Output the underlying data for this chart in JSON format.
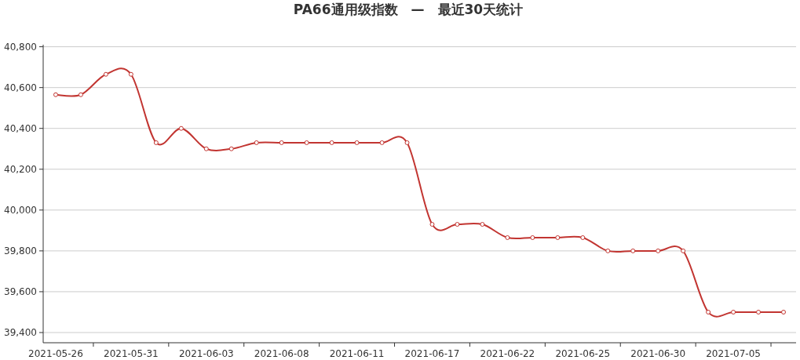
{
  "chart_data": {
    "type": "line",
    "title": "PA66通用级指数　—　最近30天统计",
    "categories": [
      "2021-05-26",
      null,
      null,
      "2021-05-31",
      null,
      null,
      "2021-06-03",
      null,
      null,
      "2021-06-08",
      null,
      null,
      "2021-06-11",
      null,
      null,
      "2021-06-17",
      null,
      null,
      "2021-06-22",
      null,
      null,
      "2021-06-25",
      null,
      null,
      "2021-06-30",
      null,
      null,
      "2021-07-05",
      null,
      null
    ],
    "series": [
      {
        "color": "#c23531",
        "values": [
          40565,
          40565,
          40665,
          40665,
          40330,
          40400,
          40300,
          40300,
          40330,
          40330,
          40330,
          40330,
          40330,
          40330,
          40330,
          39930,
          39930,
          39930,
          39865,
          39865,
          39865,
          39865,
          39800,
          39800,
          39800,
          39800,
          39500,
          39500,
          39500,
          39500
        ]
      }
    ],
    "ylim": [
      39350,
      40810
    ],
    "yticks": [
      {
        "value": 39400,
        "label": "39,400"
      },
      {
        "value": 39600,
        "label": "39,600"
      },
      {
        "value": 39800,
        "label": "39,800"
      },
      {
        "value": 40000,
        "label": "40,000"
      },
      {
        "value": 40200,
        "label": "40,200"
      },
      {
        "value": 40400,
        "label": "40,400"
      },
      {
        "value": 40600,
        "label": "40,600"
      },
      {
        "value": 40800,
        "label": "40,800"
      }
    ],
    "grid": "y",
    "marker": "circle",
    "line_style": "solid"
  }
}
